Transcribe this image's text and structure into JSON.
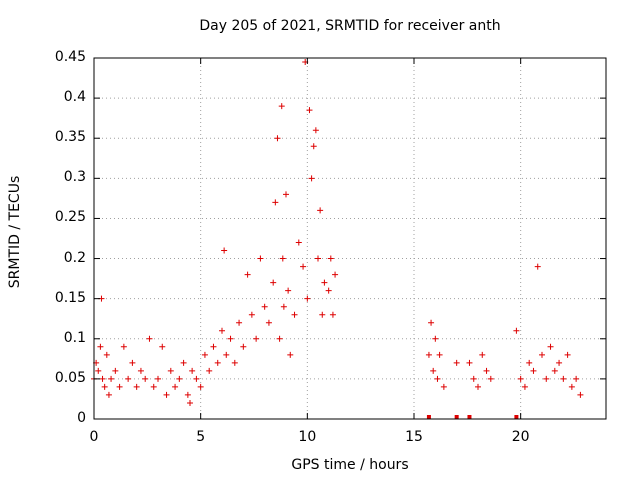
{
  "chart_data": {
    "type": "scatter",
    "title": "Day 205 of 2021, SRMTID for receiver anth",
    "xlabel": "GPS time / hours",
    "ylabel": "SRMTID / TECUs",
    "xlim": [
      0,
      24
    ],
    "ylim": [
      0,
      0.45
    ],
    "grid": true,
    "marker": "plus",
    "color": "#dd0000",
    "x_ticks": [
      0,
      5,
      10,
      15,
      20
    ],
    "x_tick_labels": [
      "0",
      "5",
      "10",
      "15",
      "20"
    ],
    "y_ticks": [
      0,
      0.05,
      0.1,
      0.15,
      0.2,
      0.25,
      0.3,
      0.35,
      0.4,
      0.45
    ],
    "y_tick_labels": [
      "0",
      "0.05",
      "0.1",
      "0.15",
      "0.2",
      "0.25",
      "0.3",
      "0.35",
      "0.4",
      "0.45"
    ],
    "series": [
      {
        "name": "SRMTID",
        "x": [
          0.0,
          0.1,
          0.2,
          0.3,
          0.35,
          0.4,
          0.5,
          0.6,
          0.7,
          0.8,
          1.0,
          1.2,
          1.4,
          1.6,
          1.8,
          2.0,
          2.2,
          2.4,
          2.6,
          2.8,
          3.0,
          3.2,
          3.4,
          3.6,
          3.8,
          4.0,
          4.2,
          4.4,
          4.5,
          4.6,
          4.8,
          5.0,
          5.2,
          5.4,
          5.6,
          5.8,
          6.0,
          6.1,
          6.2,
          6.4,
          6.6,
          6.8,
          7.0,
          7.2,
          7.4,
          7.6,
          7.8,
          8.0,
          8.2,
          8.4,
          8.5,
          8.6,
          8.7,
          8.8,
          8.85,
          8.9,
          9.0,
          9.1,
          9.2,
          9.4,
          9.6,
          9.8,
          9.9,
          10.0,
          10.1,
          10.2,
          10.3,
          10.4,
          10.5,
          10.6,
          10.7,
          10.8,
          11.0,
          11.1,
          11.2,
          11.3,
          15.7,
          15.8,
          15.9,
          16.0,
          16.1,
          16.2,
          16.4,
          17.0,
          17.6,
          17.8,
          18.0,
          18.2,
          18.4,
          18.6,
          19.8,
          20.0,
          20.2,
          20.4,
          20.6,
          20.8,
          21.0,
          21.2,
          21.4,
          21.6,
          21.8,
          22.0,
          22.2,
          22.4,
          22.6,
          22.8
        ],
        "y": [
          0.05,
          0.07,
          0.06,
          0.09,
          0.15,
          0.05,
          0.04,
          0.08,
          0.03,
          0.05,
          0.06,
          0.04,
          0.09,
          0.05,
          0.07,
          0.04,
          0.06,
          0.05,
          0.1,
          0.04,
          0.05,
          0.09,
          0.03,
          0.06,
          0.04,
          0.05,
          0.07,
          0.03,
          0.02,
          0.06,
          0.05,
          0.04,
          0.08,
          0.06,
          0.09,
          0.07,
          0.11,
          0.21,
          0.08,
          0.1,
          0.07,
          0.12,
          0.09,
          0.18,
          0.13,
          0.1,
          0.2,
          0.14,
          0.12,
          0.17,
          0.27,
          0.35,
          0.1,
          0.39,
          0.2,
          0.14,
          0.28,
          0.16,
          0.08,
          0.13,
          0.22,
          0.19,
          0.445,
          0.15,
          0.385,
          0.3,
          0.34,
          0.36,
          0.2,
          0.26,
          0.13,
          0.17,
          0.16,
          0.2,
          0.13,
          0.18,
          0.08,
          0.12,
          0.06,
          0.1,
          0.05,
          0.08,
          0.04,
          0.07,
          0.07,
          0.05,
          0.04,
          0.08,
          0.06,
          0.05,
          0.11,
          0.05,
          0.04,
          0.07,
          0.06,
          0.19,
          0.08,
          0.05,
          0.09,
          0.06,
          0.07,
          0.05,
          0.08,
          0.04,
          0.05,
          0.03
        ]
      }
    ],
    "zero_markers_x": [
      15.7,
      17.0,
      17.6,
      19.8
    ]
  }
}
